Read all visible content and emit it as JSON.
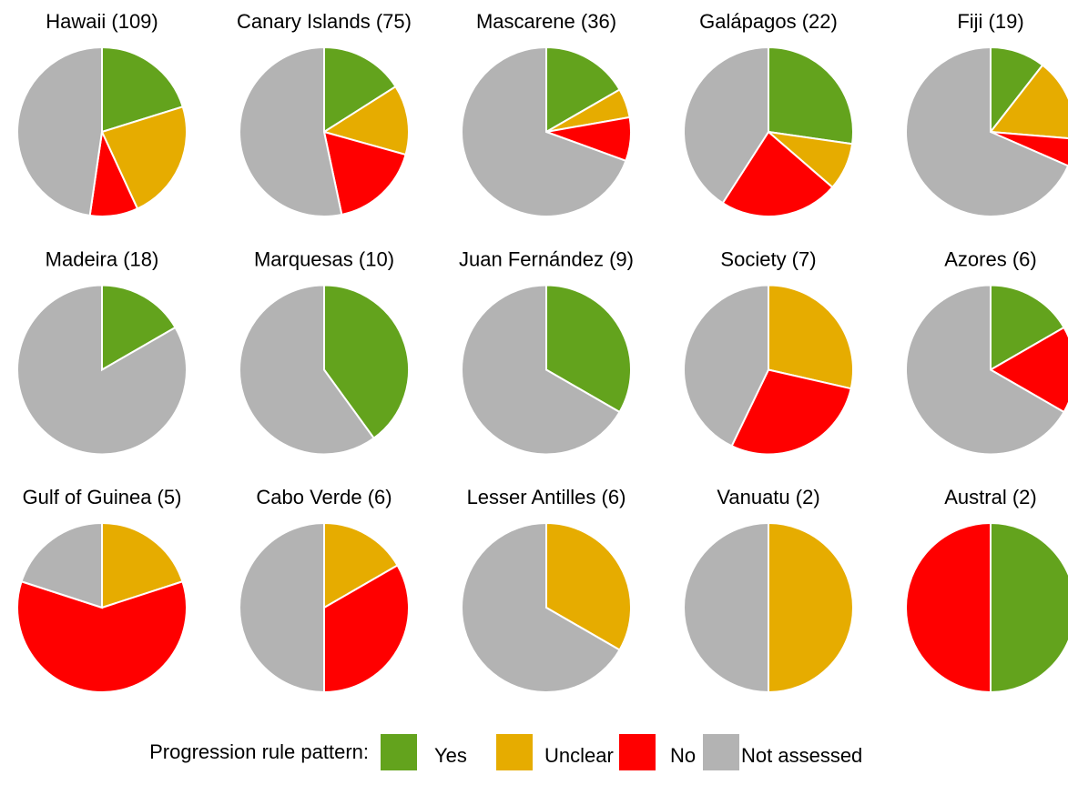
{
  "legend": {
    "title": "Progression rule pattern:",
    "items": [
      {
        "name": "Yes",
        "color": "#63a31d"
      },
      {
        "name": "Unclear",
        "color": "#e6ac00"
      },
      {
        "name": "No",
        "color": "#ff0000"
      },
      {
        "name": "Not assessed",
        "color": "#b3b3b3"
      }
    ]
  },
  "chart_data": [
    {
      "type": "pie",
      "title": "Hawaii (109)",
      "values": [
        22,
        25,
        10,
        52
      ]
    },
    {
      "type": "pie",
      "title": "Canary Islands (75)",
      "values": [
        12,
        10,
        13,
        40
      ]
    },
    {
      "type": "pie",
      "title": "Mascarene (36)",
      "values": [
        6,
        2,
        3,
        25
      ]
    },
    {
      "type": "pie",
      "title": "Galápagos (22)",
      "values": [
        6,
        2,
        5,
        9
      ]
    },
    {
      "type": "pie",
      "title": "Fiji (19)",
      "values": [
        2,
        3,
        1,
        13
      ]
    },
    {
      "type": "pie",
      "title": "Madeira (18)",
      "values": [
        3,
        0,
        0,
        15
      ]
    },
    {
      "type": "pie",
      "title": "Marquesas (10)",
      "values": [
        4,
        0,
        0,
        6
      ]
    },
    {
      "type": "pie",
      "title": "Juan Fernández (9)",
      "values": [
        3,
        0,
        0,
        6
      ]
    },
    {
      "type": "pie",
      "title": "Society (7)",
      "values": [
        0,
        2,
        2,
        3
      ]
    },
    {
      "type": "pie",
      "title": "Azores (6)",
      "values": [
        1,
        0,
        1,
        4
      ]
    },
    {
      "type": "pie",
      "title": "Gulf of Guinea (5)",
      "values": [
        0,
        1,
        3,
        1
      ]
    },
    {
      "type": "pie",
      "title": "Cabo Verde (6)",
      "values": [
        0,
        1,
        2,
        3
      ]
    },
    {
      "type": "pie",
      "title": "Lesser Antilles (6)",
      "values": [
        0,
        2,
        0,
        4
      ]
    },
    {
      "type": "pie",
      "title": "Vanuatu (2)",
      "values": [
        0,
        1,
        0,
        1
      ]
    },
    {
      "type": "pie",
      "title": "Austral (2)",
      "values": [
        1,
        0,
        1,
        0
      ]
    }
  ]
}
